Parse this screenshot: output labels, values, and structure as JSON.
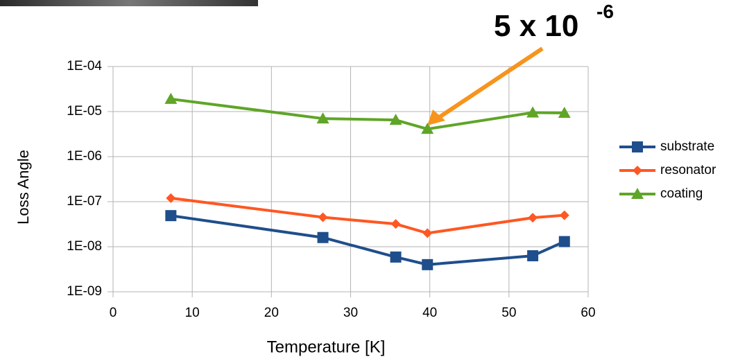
{
  "chart_data": {
    "type": "line",
    "xlabel": "Temperature [K]",
    "ylabel": "Loss Angle",
    "annotation": {
      "text": "5 x 10",
      "superscript": "-6",
      "color": "#f7941d"
    },
    "x": [
      7.3,
      26.5,
      35.7,
      39.7,
      53,
      57
    ],
    "series": [
      {
        "name": "substrate",
        "color": "#1f4e8c",
        "marker": "square",
        "values": [
          4.9e-08,
          1.6e-08,
          5.9e-09,
          4e-09,
          6.3e-09,
          1.3e-08
        ]
      },
      {
        "name": "resonator",
        "color": "#ff5722",
        "marker": "diamond",
        "values": [
          1.2e-07,
          4.5e-08,
          3.2e-08,
          2e-08,
          4.4e-08,
          5e-08
        ]
      },
      {
        "name": "coating",
        "color": "#5fa527",
        "marker": "triangle",
        "values": [
          1.9e-05,
          7e-06,
          6.5e-06,
          4.1e-06,
          9.5e-06,
          9.3e-06
        ]
      }
    ],
    "xlim": [
      0,
      60
    ],
    "xticks": [
      0,
      10,
      20,
      30,
      40,
      50,
      60
    ],
    "ylim": [
      1e-09,
      0.0001
    ],
    "yticks": [
      {
        "value": 1e-09,
        "label": "1E-09"
      },
      {
        "value": 1e-08,
        "label": "1E-08"
      },
      {
        "value": 1e-07,
        "label": "1E-07"
      },
      {
        "value": 1e-06,
        "label": "1E-06"
      },
      {
        "value": 1e-05,
        "label": "1E-05"
      },
      {
        "value": 0.0001,
        "label": "1E-04"
      }
    ],
    "ylog": true,
    "grid": true,
    "legend": "right"
  }
}
